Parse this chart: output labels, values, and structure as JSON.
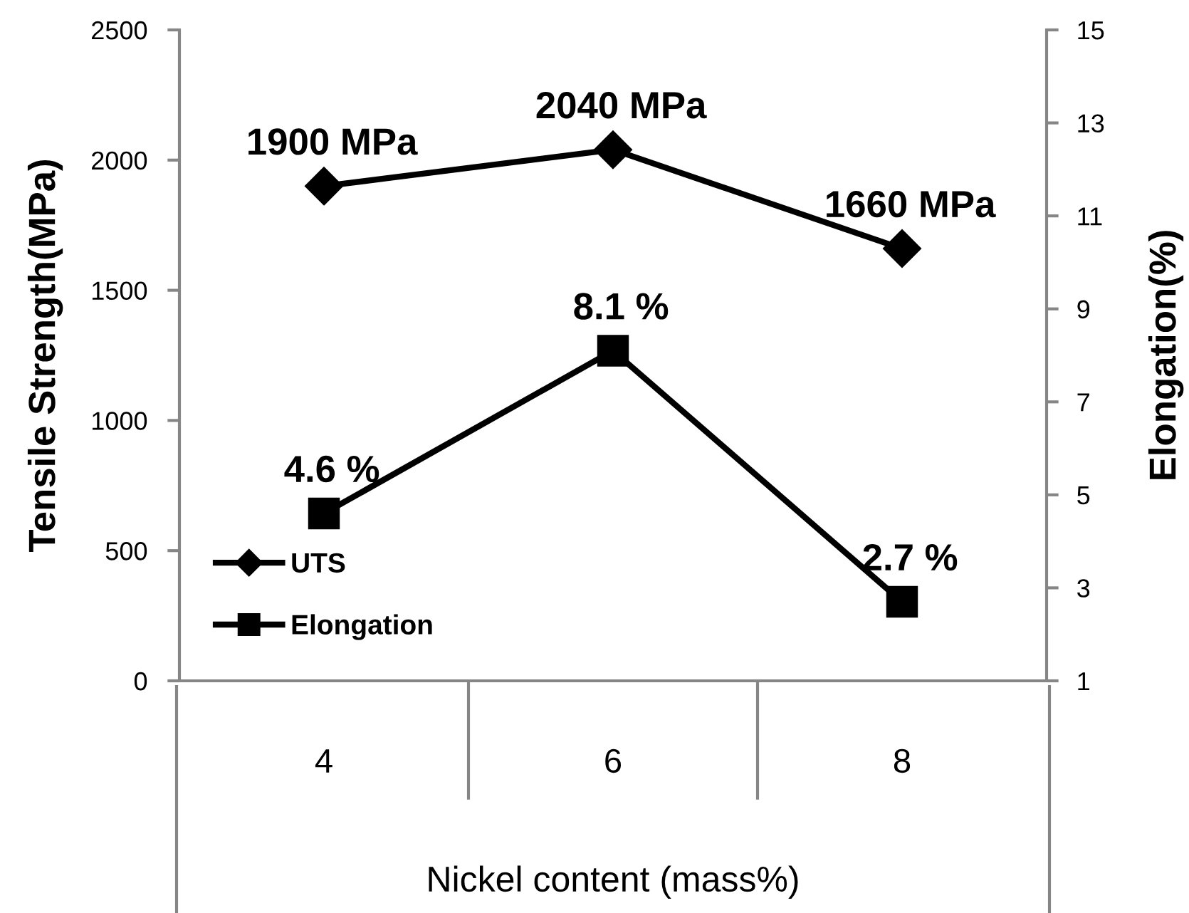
{
  "chart_data": {
    "type": "line",
    "xlabel": "Nickel content (mass%)",
    "ylabel": "Tensile Strength(MPa)",
    "y2label": "Elongation(%)",
    "x": [
      4,
      6,
      8
    ],
    "xlim": [
      3,
      9
    ],
    "xticks": [
      4,
      6,
      8
    ],
    "series": [
      {
        "name": "UTS",
        "color": "#000000",
        "marker": "diamond",
        "values": [
          1900,
          2040,
          1660
        ],
        "value_labels": [
          "1900 MPa",
          "2040 MPa",
          "1660 MPa"
        ]
      },
      {
        "name": "Elongation",
        "color": "#000000",
        "marker": "square",
        "axis": "y2",
        "values": [
          4.6,
          8.1,
          2.7
        ],
        "value_labels": [
          "4.6 %",
          "8.1 %",
          "2.7 %"
        ]
      }
    ],
    "ylim": [
      0,
      2500
    ],
    "yticks": [
      0,
      500,
      1000,
      1500,
      2000,
      2500
    ],
    "y2lim": [
      1,
      15
    ],
    "y2ticks": [
      1,
      3,
      5,
      7,
      9,
      11,
      13,
      15
    ],
    "legend": "bottom left",
    "line_style": "solid"
  }
}
